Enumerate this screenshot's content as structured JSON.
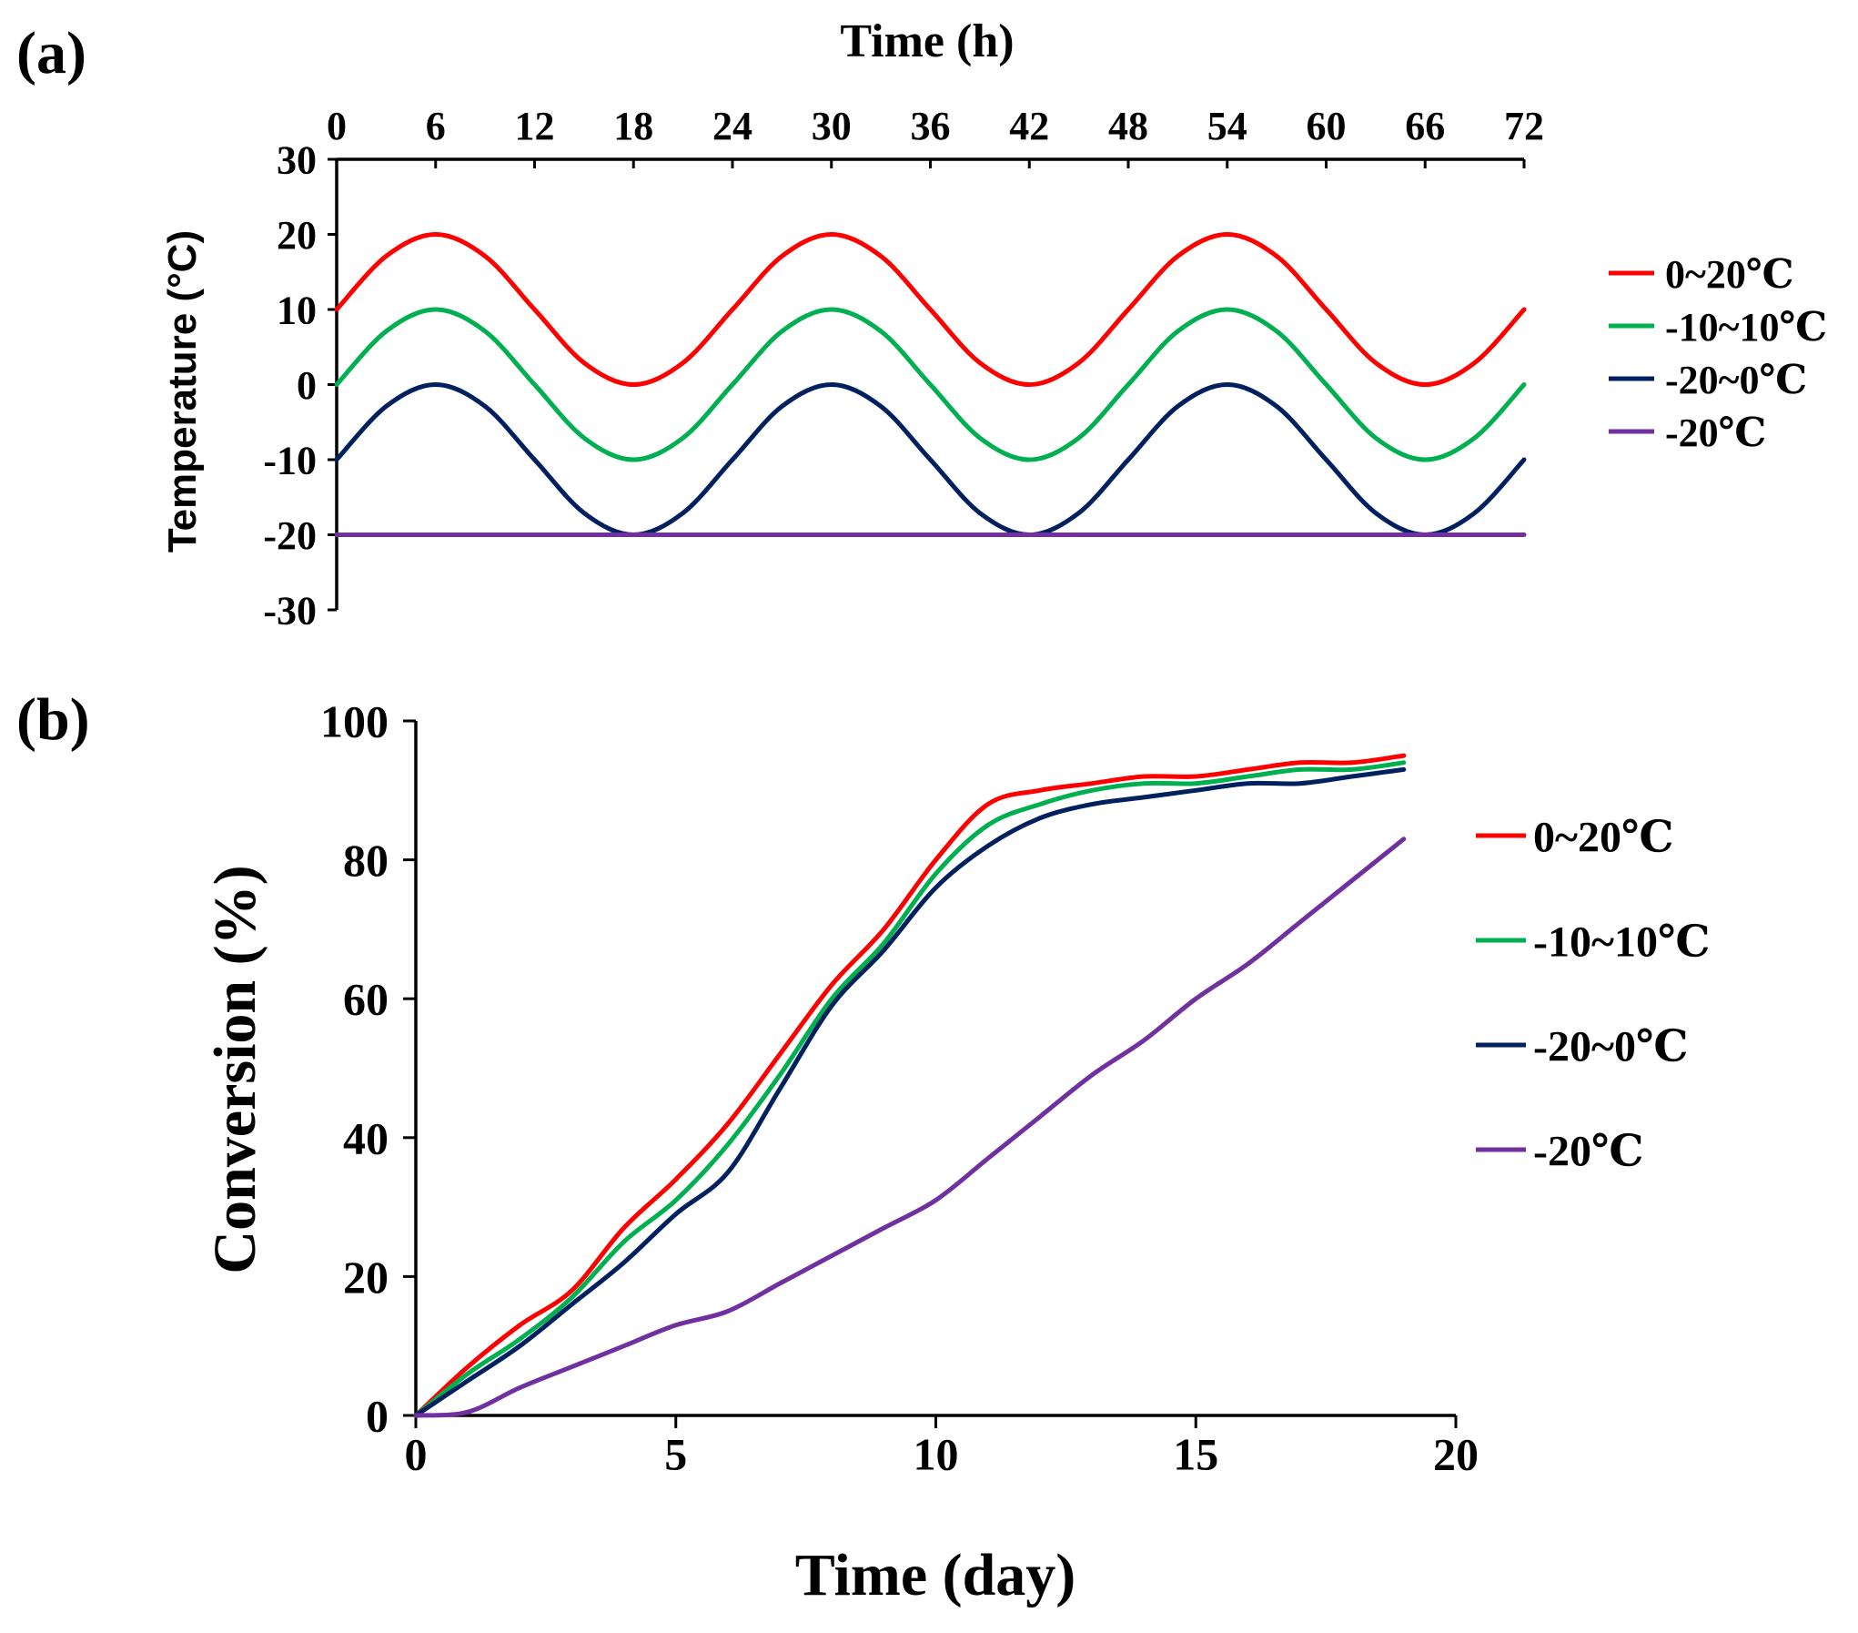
{
  "chart_data": [
    {
      "panel_label": "(a)",
      "type": "line",
      "title": "",
      "xlabel": "Time (h)",
      "ylabel": "Temperature (°C)",
      "xlim": [
        0,
        72
      ],
      "ylim": [
        -30,
        30
      ],
      "x_ticks": [
        0,
        6,
        12,
        18,
        24,
        30,
        36,
        42,
        48,
        54,
        60,
        66,
        72
      ],
      "y_ticks": [
        30,
        20,
        10,
        0,
        -10,
        -20,
        -30
      ],
      "x_axis_position": "top",
      "grid": false,
      "legend_position": "right",
      "x": [
        0,
        3,
        6,
        9,
        12,
        15,
        18,
        21,
        24,
        27,
        30,
        33,
        36,
        39,
        42,
        45,
        48,
        51,
        54,
        57,
        60,
        63,
        66,
        69,
        72
      ],
      "series": [
        {
          "name": "0~20℃",
          "color": "#ff0000",
          "values": [
            10,
            17.1,
            20,
            17.1,
            10,
            2.9,
            0,
            2.9,
            10,
            17.1,
            20,
            17.1,
            10,
            2.9,
            0,
            2.9,
            10,
            17.1,
            20,
            17.1,
            10,
            2.9,
            0,
            2.9,
            10
          ]
        },
        {
          "name": "-10~10℃",
          "color": "#00b050",
          "values": [
            0,
            7.1,
            10,
            7.1,
            0,
            -7.1,
            -10,
            -7.1,
            0,
            7.1,
            10,
            7.1,
            0,
            -7.1,
            -10,
            -7.1,
            0,
            7.1,
            10,
            7.1,
            0,
            -7.1,
            -10,
            -7.1,
            0
          ]
        },
        {
          "name": "-20~0℃",
          "color": "#002060",
          "values": [
            -10,
            -2.9,
            0,
            -2.9,
            -10,
            -17.1,
            -20,
            -17.1,
            -10,
            -2.9,
            0,
            -2.9,
            -10,
            -17.1,
            -20,
            -17.1,
            -10,
            -2.9,
            0,
            -2.9,
            -10,
            -17.1,
            -20,
            -17.1,
            -10
          ]
        },
        {
          "name": "-20℃",
          "color": "#7030a0",
          "values": [
            -20,
            -20,
            -20,
            -20,
            -20,
            -20,
            -20,
            -20,
            -20,
            -20,
            -20,
            -20,
            -20,
            -20,
            -20,
            -20,
            -20,
            -20,
            -20,
            -20,
            -20,
            -20,
            -20,
            -20,
            -20
          ]
        }
      ]
    },
    {
      "panel_label": "(b)",
      "type": "line",
      "title": "",
      "xlabel": "Time (day)",
      "ylabel": "Conversion (%)",
      "xlim": [
        0,
        20
      ],
      "ylim": [
        0,
        100
      ],
      "x_ticks": [
        0,
        5,
        10,
        15,
        20
      ],
      "y_ticks": [
        0,
        20,
        40,
        60,
        80,
        100
      ],
      "x_axis_position": "bottom",
      "grid": false,
      "legend_position": "right",
      "x": [
        0,
        1,
        2,
        3,
        4,
        5,
        6,
        7,
        8,
        9,
        10,
        11,
        12,
        13,
        14,
        15,
        16,
        17,
        18,
        19
      ],
      "series": [
        {
          "name": "0~20℃",
          "color": "#ff0000",
          "values": [
            0,
            7,
            13,
            18,
            27,
            34,
            42,
            52,
            62,
            70,
            80,
            88,
            90,
            91,
            92,
            92,
            93,
            94,
            94,
            95
          ]
        },
        {
          "name": "-10~10℃",
          "color": "#00b050",
          "values": [
            0,
            6,
            11,
            17,
            25,
            31,
            39,
            49,
            60,
            68,
            78,
            85,
            88,
            90,
            91,
            91,
            92,
            93,
            93,
            94
          ]
        },
        {
          "name": "-20~0℃",
          "color": "#002060",
          "values": [
            0,
            5,
            10,
            16,
            22,
            29,
            35,
            47,
            59,
            67,
            76,
            82,
            86,
            88,
            89,
            90,
            91,
            91,
            92,
            93
          ]
        },
        {
          "name": "-20℃",
          "color": "#7030a0",
          "values": [
            0,
            0.5,
            4,
            7,
            10,
            13,
            15,
            19,
            23,
            27,
            31,
            37,
            43,
            49,
            54,
            60,
            65,
            71,
            77,
            83
          ]
        }
      ]
    }
  ]
}
